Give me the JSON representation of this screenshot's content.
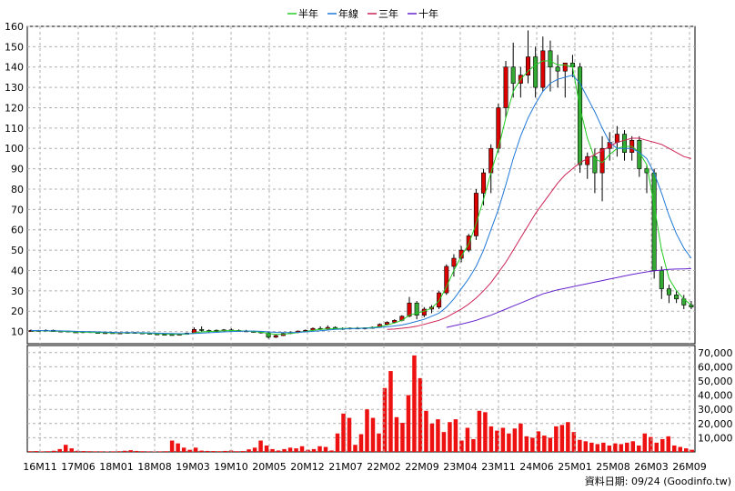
{
  "legend": [
    {
      "label": "半年",
      "color": "#22cc22"
    },
    {
      "label": "年線",
      "color": "#1f78d8"
    },
    {
      "label": "三年",
      "color": "#cc2255"
    },
    {
      "label": "十年",
      "color": "#6622cc"
    }
  ],
  "footer": "資料日期: 09/24  (Goodinfo.tw)",
  "chart_data": [
    {
      "type": "candlestick",
      "ylim": [
        4,
        160
      ],
      "yticks": [
        10,
        20,
        30,
        40,
        50,
        60,
        70,
        80,
        90,
        100,
        110,
        120,
        130,
        140,
        150,
        160
      ],
      "grid": true,
      "colors": {
        "up": "#dd0000",
        "down": "#33aa33"
      },
      "x_ticks": [
        "16M11",
        "17M06",
        "18M01",
        "18M08",
        "19M03",
        "19M10",
        "20M05",
        "20M12",
        "21M07",
        "22M02",
        "22M09",
        "23M04",
        "23M11",
        "24M06",
        "25M01",
        "25M08",
        "26M03",
        "26M09"
      ],
      "candles": [
        [
          10,
          11,
          10,
          10.5
        ],
        [
          10.5,
          10.8,
          10,
          10.3
        ],
        [
          10.3,
          11,
          10,
          10.6
        ],
        [
          10.6,
          10.9,
          9.8,
          10
        ],
        [
          10,
          10.5,
          9.7,
          10.2
        ],
        [
          10.2,
          10.4,
          9.6,
          9.8
        ],
        [
          9.8,
          10.2,
          9.4,
          9.6
        ],
        [
          9.6,
          10.1,
          9.2,
          9.9
        ],
        [
          9.9,
          10.2,
          9.3,
          9.5
        ],
        [
          9.5,
          9.8,
          9,
          9.3
        ],
        [
          9.3,
          9.7,
          8.9,
          9.4
        ],
        [
          9.4,
          9.8,
          9,
          9.2
        ],
        [
          9.2,
          9.6,
          8.8,
          9.3
        ],
        [
          9.3,
          9.7,
          9,
          9.5
        ],
        [
          9.5,
          9.8,
          9.1,
          9.3
        ],
        [
          9.3,
          9.6,
          8.9,
          9.1
        ],
        [
          9.1,
          9.4,
          8.5,
          8.8
        ],
        [
          8.8,
          9.2,
          8.3,
          8.6
        ],
        [
          8.6,
          9,
          8.2,
          8.5
        ],
        [
          8.5,
          8.9,
          8,
          8.3
        ],
        [
          8.3,
          8.8,
          8,
          8.6
        ],
        [
          8.6,
          9.5,
          8.4,
          9.2
        ],
        [
          9.2,
          12,
          9,
          11
        ],
        [
          11,
          12.5,
          10,
          10.5
        ],
        [
          10.5,
          11,
          9.5,
          10
        ],
        [
          10,
          11,
          9.8,
          10.6
        ],
        [
          10.6,
          11.2,
          10,
          10.8
        ],
        [
          10.8,
          11.5,
          10.2,
          10.5
        ],
        [
          10.5,
          11,
          10,
          10.3
        ],
        [
          10.3,
          10.8,
          9.8,
          10
        ],
        [
          10,
          10.4,
          9.5,
          9.8
        ],
        [
          9.8,
          10.2,
          9,
          9.3
        ],
        [
          9.3,
          9.6,
          6.5,
          7.2
        ],
        [
          7.2,
          8.5,
          6.8,
          8
        ],
        [
          8,
          9.3,
          7.8,
          9
        ],
        [
          9,
          10,
          8.7,
          9.5
        ],
        [
          9.5,
          10.5,
          9.2,
          10.2
        ],
        [
          10.2,
          11,
          9.8,
          10.6
        ],
        [
          10.6,
          12,
          10.2,
          11.5
        ],
        [
          11.5,
          12.5,
          10.8,
          11.2
        ],
        [
          11.2,
          13,
          11,
          12
        ],
        [
          12,
          12.5,
          11,
          11.3
        ],
        [
          11.3,
          12,
          10.8,
          11.5
        ],
        [
          11.5,
          12,
          11,
          11.7
        ],
        [
          11.7,
          12.2,
          11.2,
          11.5
        ],
        [
          11.5,
          12,
          11,
          11.8
        ],
        [
          11.8,
          12.5,
          11.4,
          12
        ],
        [
          12,
          14,
          11.8,
          13.5
        ],
        [
          13.5,
          15,
          13,
          14.5
        ],
        [
          14.5,
          16,
          14,
          15.5
        ],
        [
          15.5,
          18,
          15,
          17.5
        ],
        [
          17.5,
          27,
          17,
          24
        ],
        [
          24,
          25,
          16,
          18
        ],
        [
          18,
          22,
          17,
          21
        ],
        [
          21,
          23,
          19,
          22
        ],
        [
          22,
          30,
          21,
          29
        ],
        [
          29,
          43,
          28,
          42
        ],
        [
          42,
          48,
          37,
          46
        ],
        [
          46,
          52,
          44,
          50
        ],
        [
          50,
          58,
          49,
          57
        ],
        [
          57,
          80,
          55,
          78
        ],
        [
          78,
          90,
          72,
          88
        ],
        [
          88,
          102,
          78,
          100
        ],
        [
          100,
          122,
          98,
          120
        ],
        [
          120,
          143,
          115,
          140
        ],
        [
          140,
          152,
          125,
          132
        ],
        [
          132,
          140,
          125,
          136
        ],
        [
          136,
          158,
          132,
          145
        ],
        [
          145,
          150,
          125,
          130
        ],
        [
          130,
          155,
          128,
          148
        ],
        [
          148,
          153,
          128,
          140
        ],
        [
          140,
          146,
          130,
          138
        ],
        [
          138,
          142,
          125,
          142
        ],
        [
          142,
          146,
          135,
          140
        ],
        [
          140,
          142,
          88,
          92
        ],
        [
          92,
          98,
          85,
          96
        ],
        [
          96,
          100,
          78,
          88
        ],
        [
          88,
          106,
          74,
          100
        ],
        [
          100,
          108,
          94,
          103
        ],
        [
          103,
          111,
          96,
          107
        ],
        [
          107,
          109,
          94,
          98
        ],
        [
          98,
          106,
          94,
          104
        ],
        [
          104,
          106,
          86,
          90
        ],
        [
          90,
          92,
          78,
          88
        ],
        [
          88,
          90,
          36,
          40
        ],
        [
          40,
          42,
          26,
          31
        ],
        [
          31,
          33,
          24,
          28
        ],
        [
          28,
          30,
          24,
          26
        ],
        [
          26,
          28,
          21,
          23
        ],
        [
          23,
          25,
          21,
          22
        ]
      ],
      "series": [
        {
          "name": "半年",
          "color": "#22cc22",
          "x0": 0,
          "values": [
            10.4,
            10.4,
            10.3,
            10.2,
            10.1,
            10,
            9.8,
            9.7,
            9.6,
            9.5,
            9.4,
            9.3,
            9.3,
            9.3,
            9.3,
            9.2,
            9.1,
            8.9,
            8.8,
            8.7,
            8.6,
            8.7,
            9.3,
            9.8,
            10,
            10.2,
            10.4,
            10.5,
            10.4,
            10.2,
            10,
            9.7,
            9,
            8.6,
            8.7,
            9,
            9.5,
            10,
            10.6,
            11,
            11.3,
            11.4,
            11.5,
            11.5,
            11.6,
            11.7,
            11.9,
            12.4,
            13.2,
            14.2,
            15.5,
            18,
            19,
            20,
            21.5,
            25,
            32,
            40,
            47,
            53,
            63,
            75,
            88,
            100,
            115,
            128,
            134,
            138,
            141,
            143,
            143,
            141,
            141,
            140,
            120,
            105,
            95,
            93,
            97,
            100,
            101,
            101,
            98,
            92,
            72,
            50,
            36,
            30,
            26,
            23
          ]
        },
        {
          "name": "年線",
          "color": "#1f78d8",
          "x0": 0,
          "values": [
            10.5,
            10.5,
            10.4,
            10.4,
            10.3,
            10.2,
            10.1,
            10,
            9.9,
            9.8,
            9.7,
            9.6,
            9.5,
            9.5,
            9.4,
            9.4,
            9.3,
            9.2,
            9.1,
            9,
            8.9,
            8.9,
            9,
            9.2,
            9.4,
            9.6,
            9.8,
            10,
            10.1,
            10.2,
            10.2,
            10.1,
            9.8,
            9.6,
            9.5,
            9.5,
            9.6,
            9.8,
            10.1,
            10.4,
            10.7,
            11,
            11.2,
            11.4,
            11.5,
            11.6,
            11.7,
            12,
            12.3,
            12.7,
            13.2,
            14,
            15,
            16,
            17.5,
            19,
            22,
            26,
            31,
            36,
            42,
            50,
            60,
            70,
            82,
            95,
            106,
            115,
            122,
            128,
            132,
            134,
            135,
            136,
            132,
            125,
            118,
            110,
            103,
            100,
            100,
            100,
            98,
            95,
            88,
            78,
            67,
            58,
            51,
            46
          ]
        },
        {
          "name": "三年",
          "color": "#cc2255",
          "x0": 48,
          "values": [
            11,
            11.2,
            11.6,
            12,
            12.6,
            13.5,
            14.5,
            15.5,
            17,
            19,
            21,
            23.5,
            26.5,
            30,
            34,
            39,
            44,
            50,
            56,
            62,
            68,
            73,
            78,
            83,
            87,
            90,
            93,
            95,
            97,
            99,
            101,
            103,
            104,
            105,
            105,
            104,
            103,
            102,
            100,
            98,
            96,
            95
          ]
        },
        {
          "name": "十年",
          "color": "#6622cc",
          "x0": 56,
          "values": [
            12,
            12.8,
            13.6,
            14.5,
            15.5,
            16.8,
            18,
            19.5,
            21,
            22.5,
            24,
            25.5,
            27,
            28.5,
            29.5,
            30.5,
            31.2,
            32,
            32.8,
            33.5,
            34.3,
            35,
            35.8,
            36.5,
            37.3,
            38,
            38.7,
            39.3,
            39.8,
            40.2,
            40.5,
            40.7,
            40.8,
            40.9
          ]
        }
      ]
    },
    {
      "type": "bar",
      "ylim": [
        0,
        75000
      ],
      "yticks": [
        10000,
        20000,
        30000,
        40000,
        50000,
        60000,
        70000
      ],
      "ytick_labels": [
        "10,000",
        "20,000",
        "30,000",
        "40,000",
        "50,000",
        "60,000",
        "70,000"
      ],
      "color": "#ee1111",
      "values": [
        500,
        600,
        400,
        500,
        800,
        2000,
        5000,
        2500,
        800,
        600,
        500,
        400,
        400,
        300,
        400,
        500,
        800,
        1200,
        700,
        500,
        400,
        300,
        400,
        500,
        8000,
        6000,
        3000,
        1500,
        3000,
        900,
        700,
        600,
        500,
        700,
        1000,
        500,
        600,
        1800,
        3000,
        8000,
        4500,
        2000,
        1000,
        2000,
        3000,
        2500,
        4000,
        1500,
        2000,
        4000,
        3500,
        1000,
        13000,
        27000,
        24000,
        5000,
        12500,
        30000,
        24000,
        13000,
        45000,
        57000,
        24500,
        20500,
        40000,
        68000,
        52000,
        29000,
        20000,
        23000,
        14000,
        21000,
        23000,
        8000,
        17000,
        9000,
        29000,
        28000,
        18000,
        15000,
        17000,
        13000,
        16500,
        20000,
        11000,
        10000,
        14500,
        11500,
        10000,
        18000,
        19000,
        21000,
        14000,
        8500,
        7500,
        6500,
        5500,
        6500,
        4500,
        6000,
        5500,
        6500,
        7500,
        4500,
        13000,
        10500,
        6500,
        9000,
        11000,
        4500,
        3500,
        2500,
        1500
      ]
    }
  ]
}
